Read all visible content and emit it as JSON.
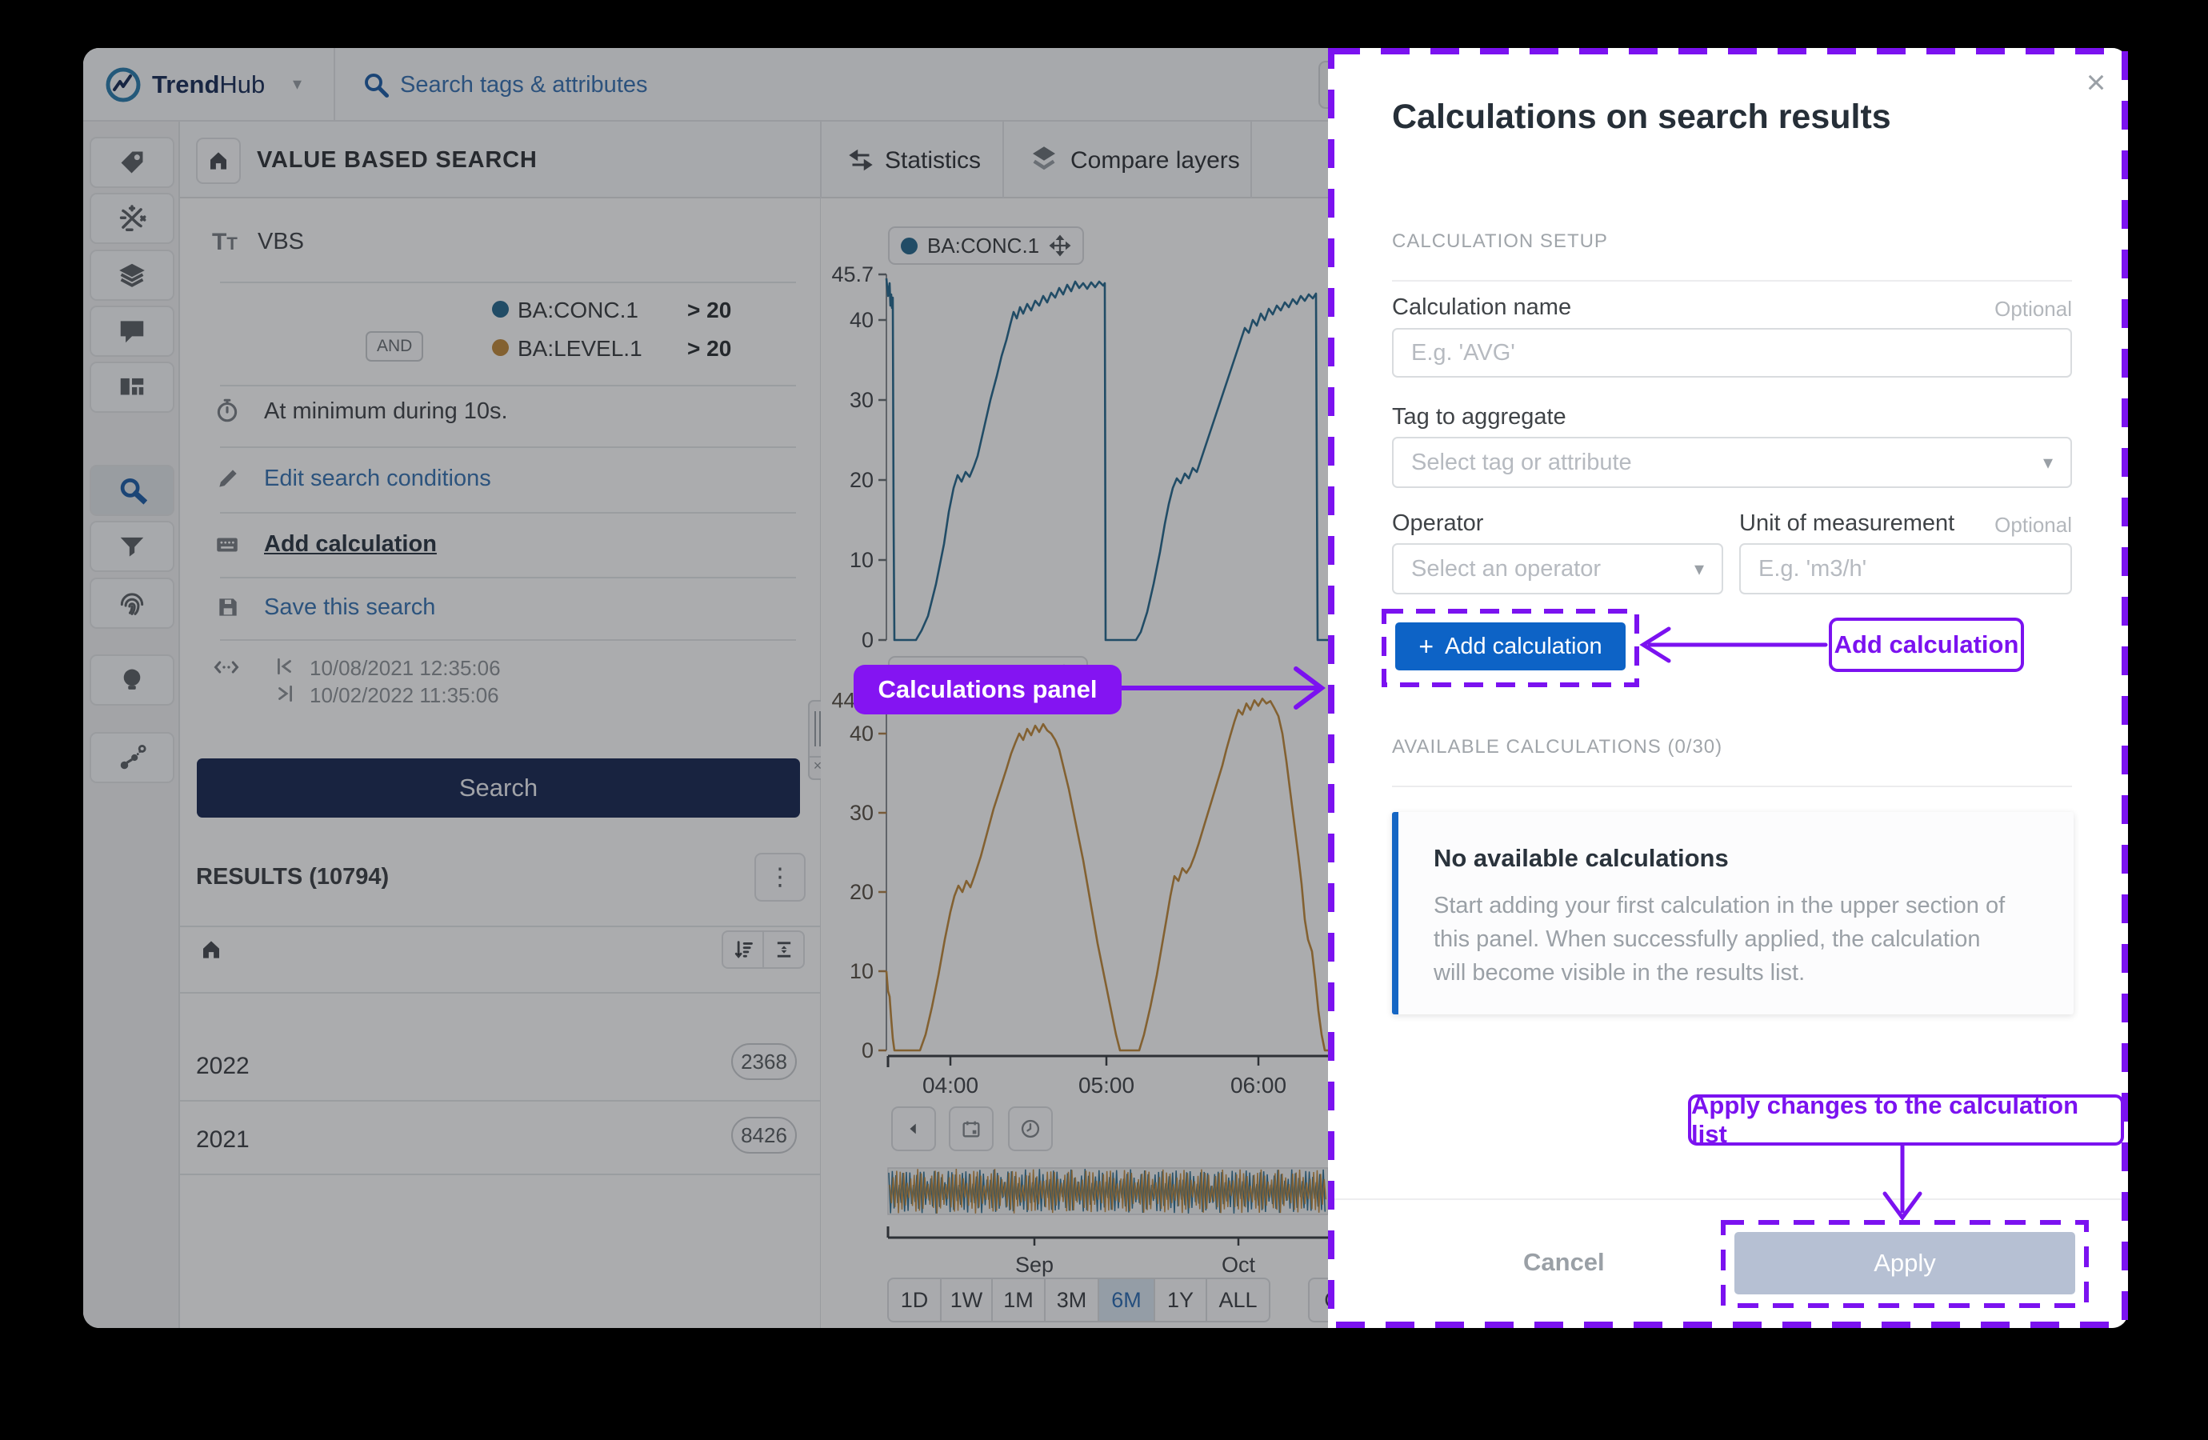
{
  "icons": {
    "close": "×",
    "caret_down": "▾",
    "kebab": "⋮",
    "plus": "+",
    "times_small": "×"
  },
  "topbar": {
    "brand_bold": "Trend",
    "brand_light": "Hub",
    "search_placeholder": "Search tags & attributes"
  },
  "rail": {
    "items": [
      "tag",
      "formulas",
      "layers",
      "comments",
      "dashboard",
      "search",
      "filter",
      "fingerprint",
      "insights",
      "ml-graph"
    ],
    "active": "search"
  },
  "subheader": {
    "title": "VALUE BASED SEARCH"
  },
  "tabs": {
    "statistics": "Statistics",
    "compare_layers": "Compare layers"
  },
  "vbs": {
    "name": "VBS",
    "conditions": [
      {
        "tag": "BA:CONC.1",
        "condition": "> 20",
        "color": "#2a6b8f"
      },
      {
        "joiner": "AND",
        "tag": "BA:LEVEL.1",
        "condition": "> 20",
        "color": "#c08a3e"
      }
    ],
    "duration": "At minimum during 10s.",
    "edit_link": "Edit search conditions",
    "add_calculation_link": "Add calculation",
    "save_link": "Save this search",
    "time_from": "10/08/2021 12:35:06",
    "time_to": "10/02/2022 11:35:06",
    "search_button": "Search"
  },
  "results": {
    "label": "RESULTS (10794)",
    "rows": [
      {
        "year": "2022",
        "count": "2368"
      },
      {
        "year": "2021",
        "count": "8426"
      }
    ]
  },
  "chart_data": {
    "type": "line",
    "charts": [
      {
        "name": "BA:CONC.1",
        "color": "#2a6b8f",
        "ylim": [
          0,
          45.7
        ],
        "y_ticks": [
          45.7,
          40,
          30,
          20,
          10,
          0
        ],
        "series": [
          [
            1108,
            45.2
          ],
          [
            1110,
            43
          ],
          [
            1112,
            44.6
          ],
          [
            1113,
            41.8
          ],
          [
            1114,
            43.2
          ],
          [
            1115,
            41.5
          ],
          [
            1116,
            42.8
          ],
          [
            1117,
            15
          ],
          [
            1118,
            0
          ],
          [
            1145,
            0
          ],
          [
            1152,
            1.2
          ],
          [
            1160,
            3
          ],
          [
            1170,
            7
          ],
          [
            1180,
            12
          ],
          [
            1186,
            16
          ],
          [
            1192,
            19
          ],
          [
            1197,
            20.6
          ],
          [
            1202,
            19.8
          ],
          [
            1207,
            21
          ],
          [
            1212,
            20.4
          ],
          [
            1217,
            21.6
          ],
          [
            1222,
            23
          ],
          [
            1230,
            26.5
          ],
          [
            1238,
            30
          ],
          [
            1246,
            33
          ],
          [
            1252,
            35.5
          ],
          [
            1258,
            37.5
          ],
          [
            1263,
            39.5
          ],
          [
            1267,
            41
          ],
          [
            1271,
            40.2
          ],
          [
            1275,
            41.6
          ],
          [
            1279,
            40.8
          ],
          [
            1284,
            42
          ],
          [
            1289,
            41.2
          ],
          [
            1294,
            42.4
          ],
          [
            1299,
            41.8
          ],
          [
            1304,
            43
          ],
          [
            1309,
            42.2
          ],
          [
            1314,
            43.4
          ],
          [
            1319,
            42.8
          ],
          [
            1324,
            44
          ],
          [
            1329,
            43.2
          ],
          [
            1334,
            44.4
          ],
          [
            1339,
            43.6
          ],
          [
            1344,
            44.8
          ],
          [
            1349,
            44
          ],
          [
            1354,
            44.6
          ],
          [
            1359,
            43.9
          ],
          [
            1364,
            44.7
          ],
          [
            1369,
            44.1
          ],
          [
            1374,
            44.8
          ],
          [
            1379,
            44.3
          ],
          [
            1381,
            44.6
          ],
          [
            1382,
            0
          ],
          [
            1420,
            0
          ],
          [
            1426,
            1
          ],
          [
            1434,
            3.5
          ],
          [
            1442,
            7
          ],
          [
            1450,
            11
          ],
          [
            1456,
            14.5
          ],
          [
            1461,
            17
          ],
          [
            1466,
            19
          ],
          [
            1471,
            20.2
          ],
          [
            1476,
            19.6
          ],
          [
            1481,
            20.8
          ],
          [
            1486,
            20.2
          ],
          [
            1491,
            21.5
          ],
          [
            1496,
            21
          ],
          [
            1501,
            22.5
          ],
          [
            1506,
            24
          ],
          [
            1511,
            25.5
          ],
          [
            1516,
            27
          ],
          [
            1521,
            28.5
          ],
          [
            1526,
            30
          ],
          [
            1531,
            31.5
          ],
          [
            1536,
            33
          ],
          [
            1541,
            34.5
          ],
          [
            1546,
            36
          ],
          [
            1551,
            37.5
          ],
          [
            1556,
            39
          ],
          [
            1561,
            38.4
          ],
          [
            1566,
            40
          ],
          [
            1571,
            39.3
          ],
          [
            1576,
            40.8
          ],
          [
            1581,
            40
          ],
          [
            1586,
            41.4
          ],
          [
            1591,
            40.7
          ],
          [
            1596,
            41.8
          ],
          [
            1601,
            41.2
          ],
          [
            1606,
            42.2
          ],
          [
            1611,
            41.6
          ],
          [
            1616,
            42.6
          ],
          [
            1621,
            42
          ],
          [
            1626,
            43
          ],
          [
            1631,
            42.4
          ],
          [
            1636,
            43.2
          ],
          [
            1641,
            42.7
          ],
          [
            1645,
            43.3
          ],
          [
            1647,
            0
          ],
          [
            1662,
            0
          ]
        ]
      },
      {
        "name": "BA:LEVEL.1",
        "color": "#c08a3e",
        "ylim": [
          0,
          44.2
        ],
        "y_ticks": [
          44.2,
          40,
          30,
          20,
          10,
          0
        ],
        "series": [
          [
            1108,
            10
          ],
          [
            1110,
            7.5
          ],
          [
            1112,
            6.8
          ],
          [
            1114,
            4
          ],
          [
            1116,
            1.5
          ],
          [
            1118,
            0
          ],
          [
            1150,
            0
          ],
          [
            1157,
            2
          ],
          [
            1165,
            5.5
          ],
          [
            1173,
            9.5
          ],
          [
            1181,
            14
          ],
          [
            1188,
            17.5
          ],
          [
            1193,
            19.5
          ],
          [
            1198,
            20.8
          ],
          [
            1203,
            20
          ],
          [
            1208,
            21.4
          ],
          [
            1213,
            20.6
          ],
          [
            1218,
            22
          ],
          [
            1226,
            24.5
          ],
          [
            1234,
            27.5
          ],
          [
            1242,
            30.5
          ],
          [
            1250,
            33
          ],
          [
            1258,
            35.5
          ],
          [
            1264,
            37.5
          ],
          [
            1269,
            38.8
          ],
          [
            1274,
            40
          ],
          [
            1279,
            39.2
          ],
          [
            1284,
            40.6
          ],
          [
            1289,
            39.8
          ],
          [
            1294,
            41
          ],
          [
            1299,
            40.2
          ],
          [
            1304,
            41.2
          ],
          [
            1309,
            40.4
          ],
          [
            1314,
            40
          ],
          [
            1319,
            39.2
          ],
          [
            1324,
            38
          ],
          [
            1330,
            35.5
          ],
          [
            1336,
            33
          ],
          [
            1342,
            30
          ],
          [
            1348,
            27
          ],
          [
            1354,
            24
          ],
          [
            1360,
            20.5
          ],
          [
            1366,
            17
          ],
          [
            1372,
            13.5
          ],
          [
            1378,
            10.5
          ],
          [
            1384,
            7.5
          ],
          [
            1390,
            4.5
          ],
          [
            1395,
            2
          ],
          [
            1400,
            0
          ],
          [
            1424,
            0
          ],
          [
            1430,
            2
          ],
          [
            1438,
            5.5
          ],
          [
            1446,
            9.5
          ],
          [
            1452,
            13
          ],
          [
            1458,
            16.5
          ],
          [
            1463,
            19.5
          ],
          [
            1468,
            22
          ],
          [
            1473,
            21.4
          ],
          [
            1478,
            23
          ],
          [
            1483,
            22.4
          ],
          [
            1488,
            23.2
          ],
          [
            1493,
            24.5
          ],
          [
            1498,
            26
          ],
          [
            1504,
            28
          ],
          [
            1510,
            30
          ],
          [
            1516,
            32
          ],
          [
            1522,
            34
          ],
          [
            1528,
            36
          ],
          [
            1533,
            38
          ],
          [
            1538,
            39.8
          ],
          [
            1543,
            41.5
          ],
          [
            1548,
            43
          ],
          [
            1553,
            42.4
          ],
          [
            1558,
            43.8
          ],
          [
            1563,
            43
          ],
          [
            1568,
            44.2
          ],
          [
            1573,
            43.5
          ],
          [
            1578,
            44.4
          ],
          [
            1583,
            43.8
          ],
          [
            1588,
            44.1
          ],
          [
            1593,
            43.2
          ],
          [
            1598,
            42.2
          ],
          [
            1603,
            40
          ],
          [
            1608,
            36.5
          ],
          [
            1613,
            32.5
          ],
          [
            1618,
            28.5
          ],
          [
            1623,
            24.5
          ],
          [
            1627,
            21
          ],
          [
            1631,
            16.5
          ],
          [
            1635,
            14
          ],
          [
            1640,
            12.5
          ],
          [
            1644,
            9
          ],
          [
            1648,
            5
          ],
          [
            1652,
            2
          ],
          [
            1656,
            0
          ],
          [
            1662,
            0
          ]
        ]
      }
    ],
    "time_ticks": [
      {
        "label": "04:00",
        "x": 1188
      },
      {
        "label": "05:00",
        "x": 1383
      },
      {
        "label": "06:00",
        "x": 1573
      }
    ],
    "overview_ticks": [
      {
        "label": "Sep",
        "x": 1293
      },
      {
        "label": "Oct",
        "x": 1548
      }
    ],
    "range_buttons": [
      "1D",
      "1W",
      "1M",
      "3M",
      "6M",
      "1Y",
      "ALL"
    ],
    "range_widths": [
      68,
      66,
      68,
      69,
      72,
      67,
      81
    ],
    "active_range": "6M",
    "partial_button": "C"
  },
  "modal": {
    "title": "Calculations on search results",
    "setup_section": "CALCULATION SETUP",
    "calc_name_label": "Calculation name",
    "calc_name_optional": "Optional",
    "calc_name_placeholder": "E.g. 'AVG'",
    "tag_label": "Tag to aggregate",
    "tag_placeholder": "Select tag or attribute",
    "operator_label": "Operator",
    "unit_label": "Unit of measurement",
    "unit_optional": "Optional",
    "operator_placeholder": "Select an operator",
    "unit_placeholder": "E.g. 'm3/h'",
    "add_button": "Add calculation",
    "available_section": "AVAILABLE CALCULATIONS (0/30)",
    "empty_title": "No available calculations",
    "empty_body": "Start adding your first calculation in the upper section of this panel. When successfully applied, the calculation will become visible in the results list.",
    "cancel": "Cancel",
    "apply": "Apply"
  },
  "annotations": {
    "calculations_panel": "Calculations panel",
    "add_calculation": "Add calculation",
    "apply_changes": "Apply changes to the calculation list",
    "accent_color": "#7b12f0"
  }
}
